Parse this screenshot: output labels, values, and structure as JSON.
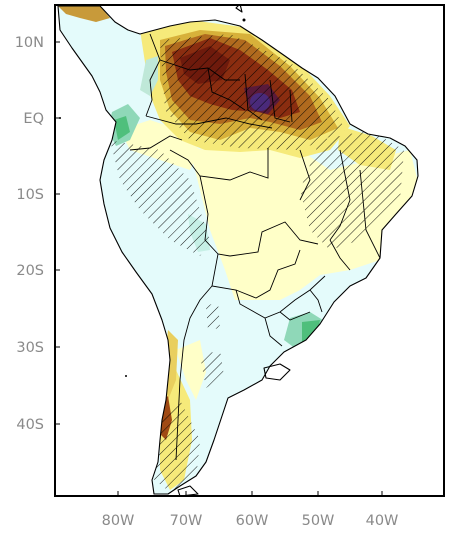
{
  "map": {
    "lat_labels": [
      "10N",
      "EQ",
      "10S",
      "20S",
      "30S",
      "40S"
    ],
    "lon_labels": [
      "80W",
      "70W",
      "60W",
      "50W",
      "40W"
    ],
    "colors": {
      "ocean": "#ffffff",
      "light_cyan": "#e4fbfb",
      "light_yellow": "#ffffc8",
      "yellow": "#f6ea7a",
      "gold": "#d7b13a",
      "orange_brown": "#b06a1e",
      "brown": "#8a2d10",
      "dark_red_brown": "#6e1a0c",
      "teal": "#8fd8b8",
      "green": "#4fbf7c",
      "purple": "#4a2a7a",
      "hatch": "#000000"
    },
    "icons": [
      "significance-hatch-pattern"
    ]
  }
}
